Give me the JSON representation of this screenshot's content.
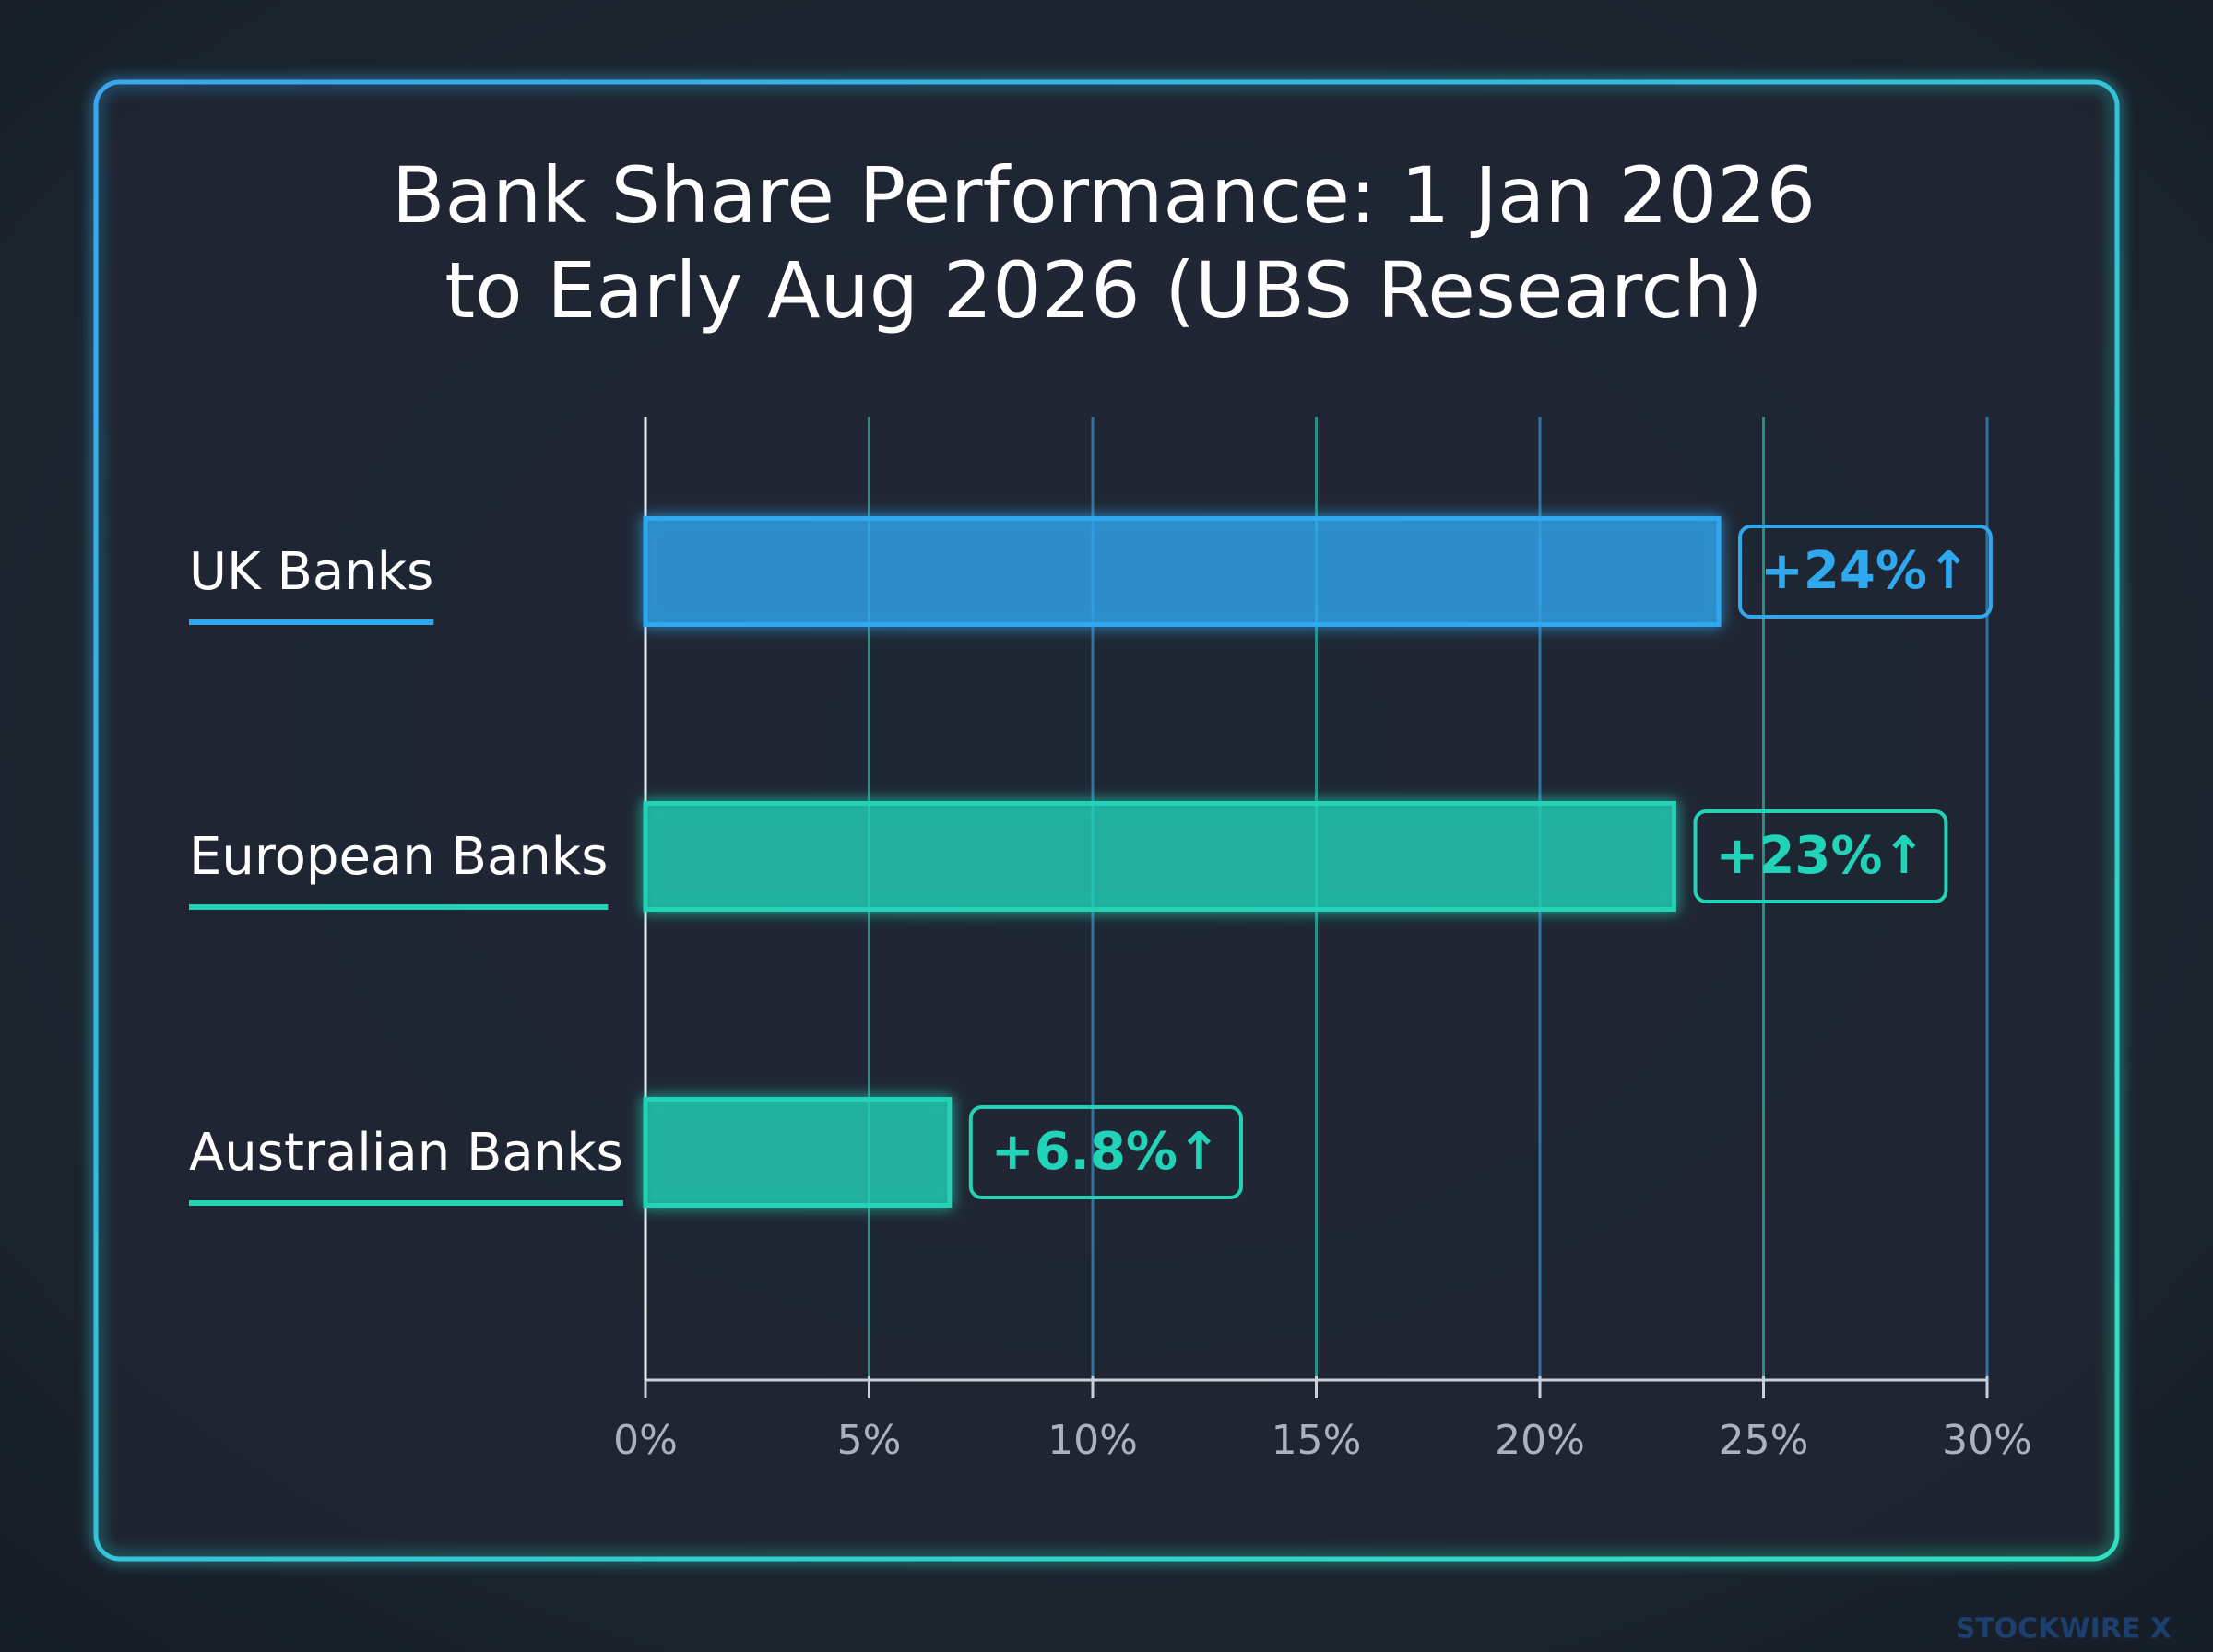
{
  "chart_data": {
    "type": "hbar",
    "title": [
      "Bank Share Performance: 1 Jan 2026",
      "to Early Aug 2026 (UBS Research)"
    ],
    "categories": [
      "UK Banks",
      "European Banks",
      "Australian Banks"
    ],
    "values": [
      24,
      23,
      6.8
    ],
    "value_labels": [
      "+24%↑",
      "+23%↑",
      "+6.8%↑"
    ],
    "colors": [
      "#2fa8f0",
      "#22d3b8",
      "#22d3b8"
    ],
    "xlim": [
      0,
      30
    ],
    "xticks": [
      {
        "value": 0,
        "label": "0%"
      },
      {
        "value": 5,
        "label": "5%"
      },
      {
        "value": 10,
        "label": "10%"
      },
      {
        "value": 15,
        "label": "15%"
      },
      {
        "value": 20,
        "label": "20%"
      },
      {
        "value": 25,
        "label": "25%"
      },
      {
        "value": 30,
        "label": "30%"
      }
    ],
    "grid": true,
    "watermark": "STOCKWIRE X"
  }
}
